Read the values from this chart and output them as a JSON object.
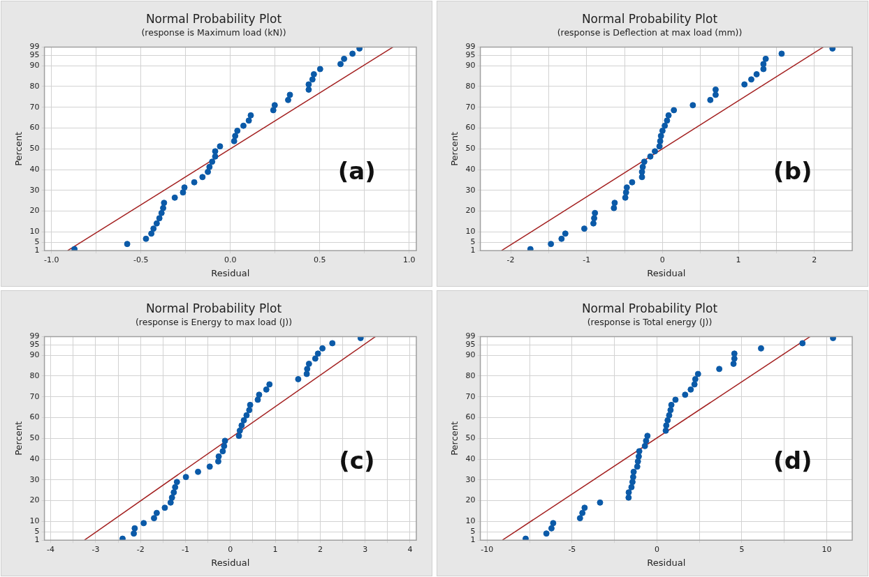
{
  "chart_data": [
    {
      "type": "scatter",
      "title": "Normal Probability Plot",
      "subtitle": "(response is Maximum load (kN))",
      "xlabel": "Residual",
      "ylabel": "Percent",
      "annotations": [
        "(a)"
      ],
      "grid": true,
      "marker": "circle",
      "xlim": [
        -1.04,
        1.04
      ],
      "xticks": [
        {
          "value": -1,
          "label": "-1.0"
        },
        {
          "value": -0.75,
          "label": null
        },
        {
          "value": -0.5,
          "label": "-0.5"
        },
        {
          "value": -0.25,
          "label": null
        },
        {
          "value": 0,
          "label": "0.0"
        },
        {
          "value": 0.25,
          "label": null
        },
        {
          "value": 0.5,
          "label": "0.5"
        },
        {
          "value": 0.75,
          "label": null
        },
        {
          "value": 1,
          "label": "1.0"
        }
      ],
      "ylim": [
        1,
        99
      ],
      "yticks": [
        1,
        5,
        10,
        20,
        30,
        40,
        50,
        60,
        70,
        80,
        90,
        95,
        99
      ],
      "series": [
        {
          "type": "scatter",
          "color": "#0b5aa8",
          "x": [
            -0.872,
            -0.577,
            -0.472,
            -0.442,
            -0.43,
            -0.412,
            -0.397,
            -0.385,
            -0.376,
            -0.371,
            -0.311,
            -0.265,
            -0.257,
            -0.202,
            -0.156,
            -0.126,
            -0.117,
            -0.102,
            -0.085,
            -0.085,
            -0.058,
            0.021,
            0.027,
            0.039,
            0.073,
            0.103,
            0.114,
            0.24,
            0.248,
            0.323,
            0.333,
            0.438,
            0.438,
            0.459,
            0.467,
            0.502,
            0.616,
            0.636,
            0.683,
            0.722
          ],
          "values": [
            1.7,
            4.2,
            6.7,
            9.2,
            11.6,
            14.1,
            16.6,
            19.1,
            21.5,
            24.0,
            26.5,
            29.0,
            31.4,
            33.9,
            36.4,
            38.9,
            41.3,
            43.8,
            46.3,
            48.8,
            51.2,
            53.7,
            56.2,
            58.7,
            61.1,
            63.6,
            66.1,
            68.6,
            71.0,
            73.5,
            76.0,
            78.5,
            81.0,
            83.4,
            85.9,
            88.4,
            90.8,
            93.3,
            95.8,
            98.3
          ]
        },
        {
          "type": "line",
          "color": "#a31f1f",
          "marker": "none",
          "x": [
            -0.91,
            0.91
          ],
          "values": [
            1,
            99
          ]
        }
      ]
    },
    {
      "type": "scatter",
      "title": "Normal Probability Plot",
      "subtitle": "(response is Deflection at max load (mm))",
      "xlabel": "Residual",
      "ylabel": "Percent",
      "annotations": [
        "(b)"
      ],
      "grid": true,
      "marker": "circle",
      "xlim": [
        -2.4,
        2.5
      ],
      "xticks": [
        {
          "value": -2,
          "label": "-2"
        },
        {
          "value": -1.5,
          "label": null
        },
        {
          "value": -1,
          "label": "-1"
        },
        {
          "value": -0.5,
          "label": null
        },
        {
          "value": 0,
          "label": "0"
        },
        {
          "value": 0.5,
          "label": null
        },
        {
          "value": 1,
          "label": "1"
        },
        {
          "value": 1.5,
          "label": null
        },
        {
          "value": 2,
          "label": "2"
        }
      ],
      "ylim": [
        1,
        99
      ],
      "yticks": [
        1,
        5,
        10,
        20,
        30,
        40,
        50,
        60,
        70,
        80,
        90,
        95,
        99
      ],
      "series": [
        {
          "type": "scatter",
          "color": "#0b5aa8",
          "x": [
            -1.74,
            -1.47,
            -1.33,
            -1.28,
            -1.03,
            -0.91,
            -0.9,
            -0.89,
            -0.64,
            -0.63,
            -0.49,
            -0.48,
            -0.47,
            -0.4,
            -0.27,
            -0.27,
            -0.26,
            -0.24,
            -0.16,
            -0.1,
            -0.04,
            -0.03,
            -0.02,
            0.0,
            0.03,
            0.06,
            0.08,
            0.15,
            0.4,
            0.63,
            0.7,
            0.7,
            1.08,
            1.17,
            1.24,
            1.33,
            1.33,
            1.36,
            1.57,
            2.24
          ],
          "values": [
            1.7,
            4.2,
            6.7,
            9.2,
            11.6,
            14.1,
            16.6,
            19.1,
            21.5,
            24.0,
            26.5,
            29.0,
            31.4,
            33.9,
            36.4,
            38.9,
            41.3,
            43.8,
            46.3,
            48.8,
            51.2,
            53.7,
            56.2,
            58.7,
            61.1,
            63.6,
            66.1,
            68.6,
            71.0,
            73.5,
            76.0,
            78.5,
            81.0,
            83.4,
            85.9,
            88.4,
            90.8,
            93.3,
            95.8,
            98.3
          ]
        },
        {
          "type": "line",
          "color": "#a31f1f",
          "marker": "none",
          "x": [
            -2.12,
            2.12
          ],
          "values": [
            1,
            99
          ]
        }
      ]
    },
    {
      "type": "scatter",
      "title": "Normal Probability Plot",
      "subtitle": "(response is Energy to max load (J))",
      "xlabel": "Residual",
      "ylabel": "Percent",
      "annotations": [
        "(c)"
      ],
      "grid": true,
      "marker": "circle",
      "xlim": [
        -4.14,
        4.14
      ],
      "xticks": [
        {
          "value": -4,
          "label": "-4"
        },
        {
          "value": -3.5,
          "label": null
        },
        {
          "value": -3,
          "label": "-3"
        },
        {
          "value": -2.5,
          "label": null
        },
        {
          "value": -2,
          "label": "-2"
        },
        {
          "value": -1.5,
          "label": null
        },
        {
          "value": -1,
          "label": "-1"
        },
        {
          "value": -0.5,
          "label": null
        },
        {
          "value": 0,
          "label": "0"
        },
        {
          "value": 0.5,
          "label": null
        },
        {
          "value": 1,
          "label": "1"
        },
        {
          "value": 1.5,
          "label": null
        },
        {
          "value": 2,
          "label": "2"
        },
        {
          "value": 2.5,
          "label": null
        },
        {
          "value": 3,
          "label": "3"
        },
        {
          "value": 3.5,
          "label": null
        },
        {
          "value": 4,
          "label": "4"
        }
      ],
      "ylim": [
        1,
        99
      ],
      "yticks": [
        1,
        5,
        10,
        20,
        30,
        40,
        50,
        60,
        70,
        80,
        90,
        95,
        99
      ],
      "series": [
        {
          "type": "scatter",
          "color": "#0b5aa8",
          "x": [
            -2.4,
            -2.15,
            -2.13,
            -1.93,
            -1.7,
            -1.64,
            -1.46,
            -1.33,
            -1.3,
            -1.26,
            -1.23,
            -1.19,
            -0.99,
            -0.72,
            -0.46,
            -0.27,
            -0.26,
            -0.17,
            -0.14,
            -0.12,
            0.19,
            0.21,
            0.25,
            0.3,
            0.36,
            0.42,
            0.44,
            0.61,
            0.64,
            0.8,
            0.87,
            1.51,
            1.7,
            1.71,
            1.75,
            1.89,
            1.95,
            2.05,
            2.27,
            2.9
          ],
          "values": [
            1.7,
            4.2,
            6.7,
            9.2,
            11.6,
            14.1,
            16.6,
            19.1,
            21.5,
            24.0,
            26.5,
            29.0,
            31.4,
            33.9,
            36.4,
            38.9,
            41.3,
            43.8,
            46.3,
            48.8,
            51.2,
            53.7,
            56.2,
            58.7,
            61.1,
            63.6,
            66.1,
            68.6,
            71.0,
            73.5,
            76.0,
            78.5,
            81.0,
            83.4,
            85.9,
            88.4,
            90.8,
            93.3,
            95.8,
            98.3
          ]
        },
        {
          "type": "line",
          "color": "#a31f1f",
          "marker": "none",
          "x": [
            -3.25,
            3.23
          ],
          "values": [
            1,
            99
          ]
        }
      ]
    },
    {
      "type": "scatter",
      "title": "Normal Probability Plot",
      "subtitle": "(response is Total energy (J))",
      "xlabel": "Residual",
      "ylabel": "Percent",
      "annotations": [
        "(d)"
      ],
      "grid": true,
      "marker": "circle",
      "xlim": [
        -10.4,
        11.5
      ],
      "xticks": [
        {
          "value": -10,
          "label": "-10"
        },
        {
          "value": -7.5,
          "label": null
        },
        {
          "value": -5,
          "label": "-5"
        },
        {
          "value": -2.5,
          "label": null
        },
        {
          "value": 0,
          "label": "0"
        },
        {
          "value": 2.5,
          "label": null
        },
        {
          "value": 5,
          "label": "5"
        },
        {
          "value": 7.5,
          "label": null
        },
        {
          "value": 10,
          "label": "10"
        }
      ],
      "ylim": [
        1,
        99
      ],
      "yticks": [
        1,
        5,
        10,
        20,
        30,
        40,
        50,
        60,
        70,
        80,
        90,
        95,
        99
      ],
      "series": [
        {
          "type": "scatter",
          "color": "#0b5aa8",
          "x": [
            -7.73,
            -6.51,
            -6.21,
            -6.11,
            -4.53,
            -4.39,
            -4.26,
            -3.35,
            -1.67,
            -1.66,
            -1.5,
            -1.44,
            -1.4,
            -1.37,
            -1.16,
            -1.12,
            -1.07,
            -1.04,
            -0.71,
            -0.64,
            -0.56,
            0.52,
            0.55,
            0.63,
            0.72,
            0.8,
            0.85,
            1.09,
            1.66,
            1.99,
            2.21,
            2.26,
            2.42,
            3.67,
            4.51,
            4.56,
            4.56,
            6.13,
            8.57,
            10.37
          ],
          "values": [
            1.7,
            4.2,
            6.7,
            9.2,
            11.6,
            14.1,
            16.6,
            19.1,
            21.5,
            24.0,
            26.5,
            29.0,
            31.4,
            33.9,
            36.4,
            38.9,
            41.3,
            43.8,
            46.3,
            48.8,
            51.2,
            53.7,
            56.2,
            58.7,
            61.1,
            63.6,
            66.1,
            68.6,
            71.0,
            73.5,
            76.0,
            78.5,
            81.0,
            83.4,
            85.9,
            88.4,
            90.8,
            93.3,
            95.8,
            98.3
          ]
        },
        {
          "type": "line",
          "color": "#a31f1f",
          "marker": "none",
          "x": [
            -9.1,
            9.02
          ],
          "values": [
            1,
            99
          ]
        }
      ]
    }
  ]
}
